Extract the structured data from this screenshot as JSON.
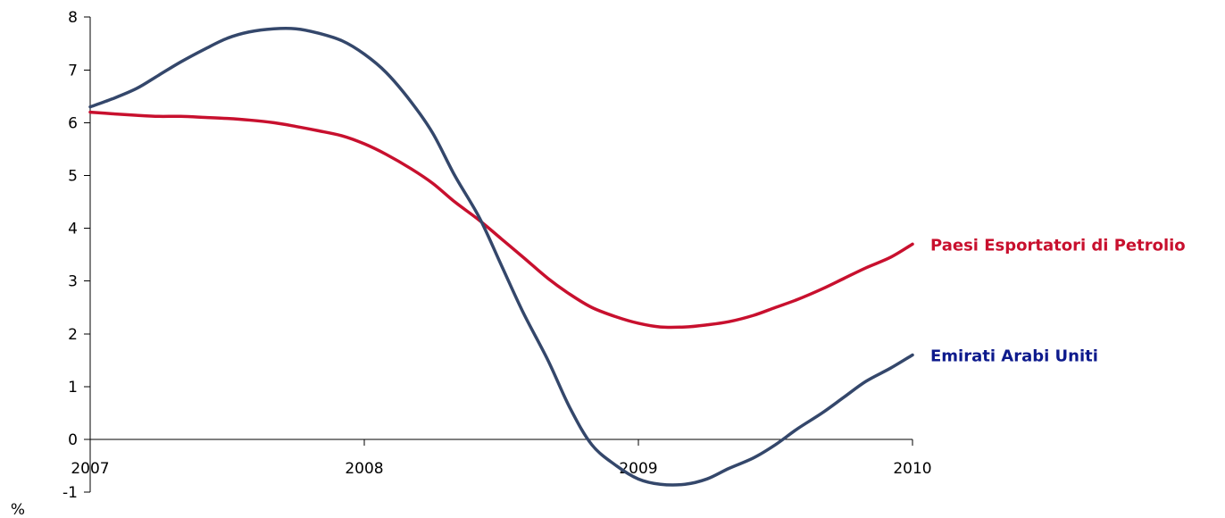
{
  "chart_data": {
    "type": "line",
    "title": "",
    "xlabel": "",
    "ylabel": "%",
    "xlim": [
      2007,
      2010
    ],
    "ylim": [
      -1,
      8
    ],
    "x_ticks": [
      "2007",
      "2008",
      "2009",
      "2010"
    ],
    "y_ticks": [
      "-1",
      "0",
      "1",
      "2",
      "3",
      "4",
      "5",
      "6",
      "7",
      "8"
    ],
    "grid": false,
    "legend": "inline labels at right end of series",
    "series": [
      {
        "name": "Paesi Esportatori di Petrolio",
        "color": "#c8102e",
        "x": [
          2007.0,
          2007.08,
          2007.17,
          2007.25,
          2007.33,
          2007.42,
          2007.5,
          2007.58,
          2007.67,
          2007.75,
          2007.83,
          2007.92,
          2008.0,
          2008.08,
          2008.17,
          2008.25,
          2008.33,
          2008.42,
          2008.5,
          2008.58,
          2008.67,
          2008.75,
          2008.83,
          2008.92,
          2009.0,
          2009.08,
          2009.17,
          2009.25,
          2009.33,
          2009.42,
          2009.5,
          2009.58,
          2009.67,
          2009.75,
          2009.83,
          2009.92,
          2010.0
        ],
        "values": [
          6.2,
          6.17,
          6.14,
          6.12,
          6.12,
          6.1,
          6.08,
          6.05,
          6.0,
          5.93,
          5.85,
          5.75,
          5.6,
          5.4,
          5.13,
          4.85,
          4.5,
          4.15,
          3.8,
          3.45,
          3.05,
          2.75,
          2.5,
          2.32,
          2.2,
          2.13,
          2.13,
          2.17,
          2.23,
          2.35,
          2.5,
          2.65,
          2.85,
          3.05,
          3.25,
          3.45,
          3.7
        ]
      },
      {
        "name": "Emirati Arabi Uniti",
        "color": "#34476b",
        "x": [
          2007.0,
          2007.08,
          2007.17,
          2007.25,
          2007.33,
          2007.42,
          2007.5,
          2007.58,
          2007.67,
          2007.75,
          2007.83,
          2007.92,
          2008.0,
          2008.08,
          2008.17,
          2008.25,
          2008.33,
          2008.42,
          2008.5,
          2008.58,
          2008.67,
          2008.75,
          2008.83,
          2008.92,
          2009.0,
          2009.08,
          2009.17,
          2009.25,
          2009.33,
          2009.42,
          2009.5,
          2009.58,
          2009.67,
          2009.75,
          2009.83,
          2009.92,
          2010.0
        ],
        "values": [
          6.3,
          6.45,
          6.65,
          6.9,
          7.15,
          7.4,
          7.6,
          7.72,
          7.78,
          7.78,
          7.7,
          7.55,
          7.3,
          6.95,
          6.4,
          5.8,
          5.0,
          4.2,
          3.3,
          2.4,
          1.5,
          0.6,
          -0.1,
          -0.5,
          -0.75,
          -0.85,
          -0.85,
          -0.75,
          -0.55,
          -0.35,
          -0.1,
          0.2,
          0.5,
          0.8,
          1.1,
          1.35,
          1.6
        ]
      }
    ]
  }
}
